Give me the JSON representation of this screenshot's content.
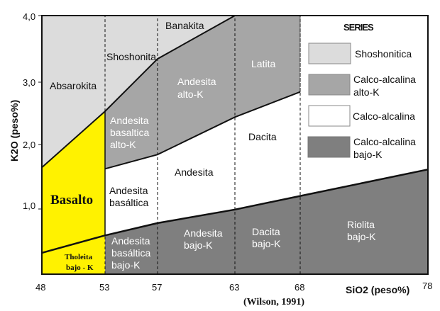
{
  "chart_data": {
    "type": "diagram",
    "xlabel": "SiO2 (peso%)",
    "ylabel": "K2O (peso%)",
    "xlim": [
      48,
      78
    ],
    "ylim": [
      0,
      4.0
    ],
    "x_ticks": [
      "48",
      "53",
      "57",
      "63",
      "68",
      "78"
    ],
    "y_ticks": [
      "1,0",
      "2,0",
      "3,0",
      "4,0"
    ],
    "credit": "(Wilson, 1991)",
    "colors": {
      "shoshonitic": "#dcdcdc",
      "high_k": "#a6a6a6",
      "calc_alkaline": "#ffffff",
      "low_k": "#7f7f7f",
      "basalt": "#fff200"
    },
    "boundaries": {
      "shoshonitic_high_k": [
        [
          48,
          1.65
        ],
        [
          53,
          2.52
        ],
        [
          57,
          3.33
        ],
        [
          63,
          4.0
        ]
      ],
      "high_k_calc_alkaline": [
        [
          53,
          1.63
        ],
        [
          57,
          1.85
        ],
        [
          63,
          2.43
        ],
        [
          68,
          2.82
        ]
      ],
      "calc_alkaline_low_k": [
        [
          48,
          0.33
        ],
        [
          53,
          0.6
        ],
        [
          57,
          0.79
        ],
        [
          63,
          1.0
        ],
        [
          68,
          1.21
        ],
        [
          78,
          1.62
        ]
      ]
    },
    "regions": {
      "absarokita": "Absarokita",
      "shoshonita": "Shoshonita",
      "banakita": "Banakita",
      "andesita_alto_k": [
        "Andesita",
        "alto-K"
      ],
      "latita": "Latita",
      "andesita_basaltica_alto_k": [
        "Andesita",
        "basaltica",
        "alto-K"
      ],
      "basalto": "Basalto",
      "andesita_basaltica": [
        "Andesita",
        "basáltica"
      ],
      "andesita": "Andesita",
      "dacita": "Dacita",
      "tholeita_bajo_k": [
        "Tholeita",
        "bajo - K"
      ],
      "andesita_basaltica_bajo_k": [
        "Andesita",
        "basáltica",
        "bajo-K"
      ],
      "andesita_bajo_k": [
        "Andesita",
        "bajo-K"
      ],
      "dacita_bajo_k": [
        "Dacita",
        "bajo-K"
      ],
      "riolita_bajo_k": [
        "Riolita",
        "bajo-K"
      ]
    },
    "legend": {
      "title": "SERIES",
      "placement": "top-right",
      "items": [
        {
          "lines": [
            "Shoshonitica"
          ],
          "color_key": "shoshonitic"
        },
        {
          "lines": [
            "Calco-alcalina",
            "alto-K"
          ],
          "color_key": "high_k"
        },
        {
          "lines": [
            "Calco-alcalina"
          ],
          "color_key": "calc_alkaline"
        },
        {
          "lines": [
            "Calco-alcalina",
            "bajo-K"
          ],
          "color_key": "low_k"
        }
      ]
    }
  }
}
